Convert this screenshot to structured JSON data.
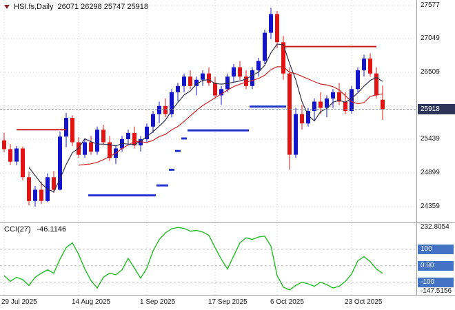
{
  "chart_data": {
    "type": "candlestick",
    "header": {
      "symbol": "HSI.fs,Daily",
      "ohlc": "26071 26298 25747 25918"
    },
    "last": {
      "open": 26071,
      "high": 26298,
      "low": 25747,
      "close": 25918
    },
    "axis_badge": "25918",
    "price_line": 25918,
    "price_range": [
      24117,
      27665
    ],
    "grid_prices": [
      27577,
      27049,
      26509,
      25969,
      25439,
      24899,
      24359
    ],
    "price_labels": [
      27577,
      27049,
      26509,
      25439,
      24899,
      24359
    ],
    "x_ticks": [
      {
        "i": 0,
        "label": "29 Jul 2025"
      },
      {
        "i": 12,
        "label": "14 Aug 2025"
      },
      {
        "i": 23,
        "label": "1 Sep 2025"
      },
      {
        "i": 34,
        "label": "17 Sep 2025"
      },
      {
        "i": 44,
        "label": "6 Oct 2025"
      },
      {
        "i": 56,
        "label": "23 Oct 2025"
      }
    ],
    "candles": [
      [
        25420,
        25540,
        25230,
        25280
      ],
      [
        25280,
        25360,
        25030,
        25080
      ],
      [
        25080,
        25330,
        25020,
        25290
      ],
      [
        25290,
        25320,
        24780,
        24830
      ],
      [
        24830,
        24920,
        24380,
        24450
      ],
      [
        24450,
        24690,
        24360,
        24630
      ],
      [
        24630,
        24760,
        24400,
        24450
      ],
      [
        24450,
        24890,
        24430,
        24830
      ],
      [
        24830,
        24930,
        24580,
        24630
      ],
      [
        24630,
        25560,
        24620,
        25480
      ],
      [
        25480,
        25860,
        25310,
        25780
      ],
      [
        25780,
        25820,
        25330,
        25390
      ],
      [
        25390,
        25470,
        25140,
        25190
      ],
      [
        25190,
        25440,
        25140,
        25390
      ],
      [
        25390,
        25490,
        25190,
        25240
      ],
      [
        25240,
        25640,
        25190,
        25590
      ],
      [
        25590,
        25670,
        25340,
        25390
      ],
      [
        25390,
        25490,
        25090,
        25140
      ],
      [
        25140,
        25340,
        25040,
        25290
      ],
      [
        25290,
        25490,
        25240,
        25440
      ],
      [
        25440,
        25590,
        25340,
        25540
      ],
      [
        25540,
        25640,
        25290,
        25340
      ],
      [
        25340,
        25490,
        25240,
        25440
      ],
      [
        25440,
        25690,
        25390,
        25640
      ],
      [
        25640,
        25890,
        25540,
        25840
      ],
      [
        25840,
        26040,
        25690,
        25970
      ],
      [
        25970,
        26090,
        25790,
        25840
      ],
      [
        25840,
        26240,
        25790,
        26190
      ],
      [
        26190,
        26340,
        26040,
        26290
      ],
      [
        26290,
        26490,
        26190,
        26440
      ],
      [
        26440,
        26540,
        26240,
        26290
      ],
      [
        26290,
        26440,
        26140,
        26390
      ],
      [
        26390,
        26540,
        26290,
        26490
      ],
      [
        26490,
        26590,
        26290,
        26340
      ],
      [
        26340,
        26440,
        26090,
        26140
      ],
      [
        26140,
        26290,
        25990,
        26240
      ],
      [
        26240,
        26490,
        26190,
        26440
      ],
      [
        26440,
        26640,
        26340,
        26590
      ],
      [
        26590,
        26690,
        26390,
        26440
      ],
      [
        26440,
        26540,
        26240,
        26290
      ],
      [
        26290,
        26590,
        26240,
        26540
      ],
      [
        26540,
        26740,
        26440,
        26690
      ],
      [
        26690,
        27190,
        26640,
        27140
      ],
      [
        27140,
        27540,
        27040,
        27440
      ],
      [
        27440,
        27490,
        26890,
        26990
      ],
      [
        26990,
        27090,
        26390,
        26490
      ],
      [
        26490,
        26590,
        24950,
        25190
      ],
      [
        25190,
        25940,
        25140,
        25840
      ],
      [
        25840,
        25990,
        25590,
        25690
      ],
      [
        25690,
        25940,
        25640,
        25890
      ],
      [
        25890,
        26090,
        25740,
        26040
      ],
      [
        26040,
        26190,
        25840,
        25940
      ],
      [
        25940,
        26140,
        25790,
        26090
      ],
      [
        26090,
        26240,
        25940,
        26190
      ],
      [
        26190,
        26340,
        25990,
        26040
      ],
      [
        26040,
        26190,
        25840,
        25890
      ],
      [
        25890,
        26290,
        25850,
        26240
      ],
      [
        26240,
        26590,
        26190,
        26540
      ],
      [
        26540,
        26790,
        26440,
        26730
      ],
      [
        26730,
        26810,
        26440,
        26490
      ],
      [
        26490,
        26590,
        26090,
        26140
      ],
      [
        26071,
        26298,
        25747,
        25918
      ]
    ],
    "overlays": {
      "ma_fast_period": 5,
      "ma_slow_period": 13,
      "step_segments": [
        {
          "from": 14,
          "to": 24,
          "price": 24540
        },
        {
          "from": 25,
          "to": 26,
          "price": 24700
        },
        {
          "from": 27,
          "to": 27,
          "price": 24950
        },
        {
          "from": 28,
          "to": 28,
          "price": 25250
        },
        {
          "from": 29,
          "to": 29,
          "price": 25450
        },
        {
          "from": 30,
          "to": 39,
          "price": 25580
        },
        {
          "from": 40,
          "to": 45,
          "price": 25960
        }
      ],
      "hlines": [
        {
          "from": 2,
          "to": 10,
          "price": 25590
        },
        {
          "from": 45,
          "to": 60,
          "price": 26920
        }
      ]
    },
    "indicator": {
      "name": "CCI(27)",
      "value_label": "-46.1146",
      "range": [
        -177,
        263
      ],
      "max_label": "232.8054",
      "min_label": "-147.5156",
      "levels": [
        {
          "value": 100,
          "label": "100"
        },
        {
          "value": 0,
          "label": "0.00"
        },
        {
          "value": -100,
          "label": "-100"
        }
      ],
      "values": [
        -60,
        -95,
        -70,
        -85,
        -120,
        -70,
        -45,
        -25,
        -45,
        40,
        110,
        140,
        70,
        -20,
        -90,
        -135,
        -70,
        -45,
        -55,
        -25,
        45,
        -15,
        -75,
        -15,
        90,
        160,
        200,
        225,
        232.8054,
        228,
        210,
        215,
        205,
        185,
        110,
        40,
        -20,
        60,
        140,
        170,
        160,
        175,
        180,
        120,
        -60,
        -130,
        -147.5156,
        -120,
        -100,
        -110,
        -125,
        -100,
        -115,
        -135,
        -125,
        -95,
        -50,
        30,
        55,
        25,
        -20,
        -46.1146
      ]
    },
    "colors": {
      "bg": "#ffffff",
      "grid": "#cccccc",
      "up": "#1414cc",
      "down": "#e41212",
      "ma_fast": "#30304d",
      "ma_slow": "#cc2222",
      "step_line": "#2233cc",
      "hline": "#cc1f1f",
      "price_line": "#8090a8",
      "badge_bg": "#2c3457",
      "level_badge_bg": "#4472c4",
      "cci": "#22bb22"
    }
  }
}
